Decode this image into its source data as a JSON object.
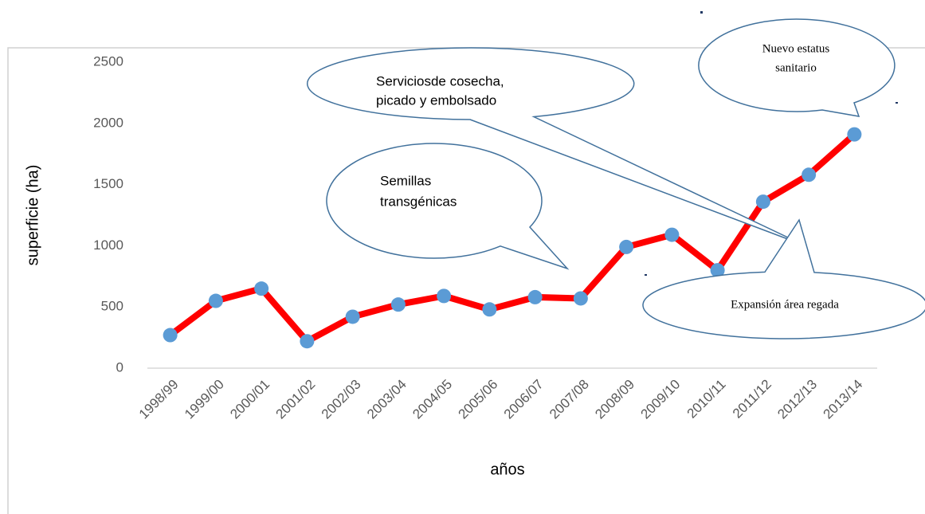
{
  "chart_data": {
    "type": "line",
    "ylabel": "superficie (ha)",
    "xlabel": "años",
    "categories": [
      "1998/99",
      "1999/00",
      "2000/01",
      "2001/02",
      "2002/03",
      "2003/04",
      "2004/05",
      "2005/06",
      "2006/07",
      "2007/08",
      "2008/09",
      "2009/10",
      "2010/11",
      "2011/12",
      "2012/13",
      "2013/14"
    ],
    "series": [
      {
        "color": "#ff0000",
        "marker_color": "#5b9bd5",
        "values": [
          270,
          550,
          650,
          220,
          420,
          520,
          590,
          480,
          580,
          570,
          990,
          1090,
          800,
          1360,
          1580,
          1910
        ]
      }
    ],
    "ylim": [
      0,
      2500
    ],
    "yticks": [
      0,
      500,
      1000,
      1500,
      2000,
      2500
    ],
    "grid": false,
    "annotations": [
      {
        "lines": [
          "Serviciosde cosecha,",
          "picado y embolsado"
        ]
      },
      {
        "lines": [
          "Semillas",
          "transgénicas"
        ]
      },
      {
        "lines": [
          "Nuevo estatus",
          "sanitario"
        ]
      },
      {
        "lines": [
          "Expansión área regada"
        ]
      }
    ]
  }
}
